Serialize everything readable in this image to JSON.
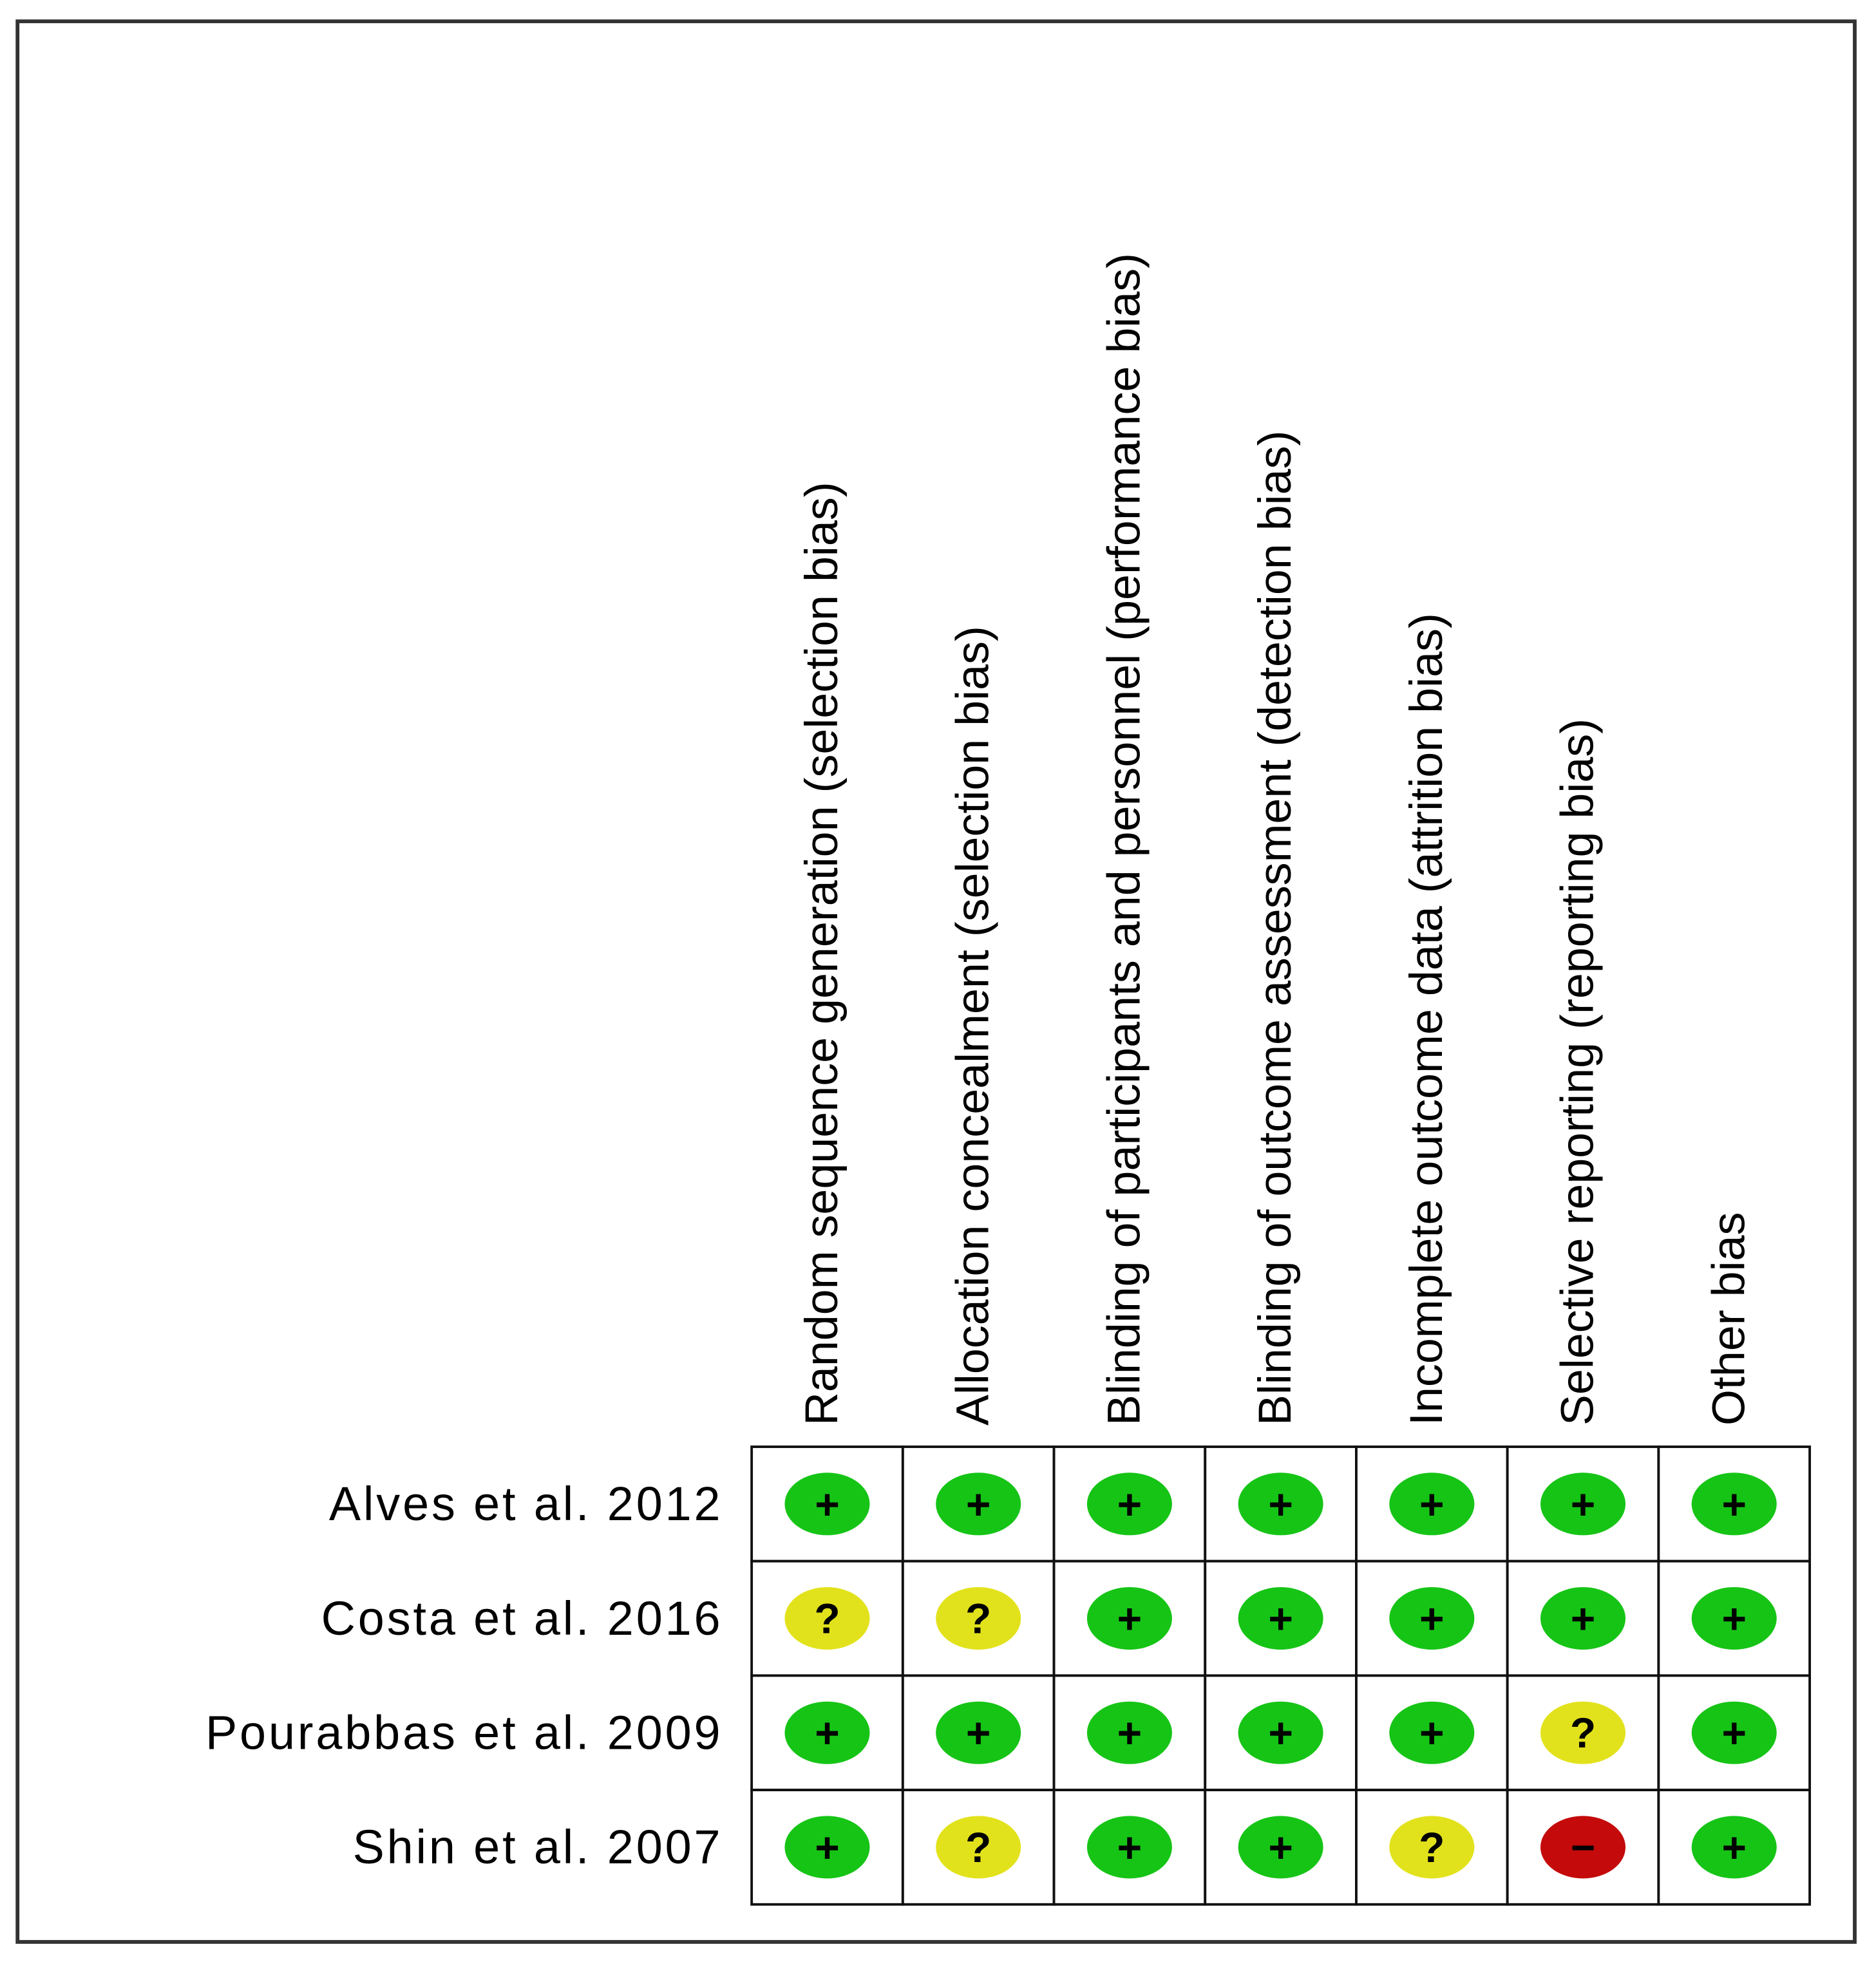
{
  "domains": [
    "Random sequence generation (selection bias)",
    "Allocation concealment (selection bias)",
    "Blinding of participants and personnel (performance bias)",
    "Blinding of outcome assessment (detection bias)",
    "Incomplete outcome data (attrition bias)",
    "Selective reporting (reporting bias)",
    "Other bias"
  ],
  "studies": [
    "Alves et al. 2012",
    "Costa et al. 2016",
    "Pourabbas et al. 2009",
    "Shin et al. 2007"
  ],
  "judgments": [
    [
      "+",
      "+",
      "+",
      "+",
      "+",
      "+",
      "+"
    ],
    [
      "?",
      "?",
      "+",
      "+",
      "+",
      "+",
      "+"
    ],
    [
      "+",
      "+",
      "+",
      "+",
      "+",
      "?",
      "+"
    ],
    [
      "+",
      "?",
      "+",
      "+",
      "?",
      "−",
      "+"
    ]
  ],
  "judgment_colors": {
    "+": "#16c416",
    "?": "#e2e21c",
    "−": "#c40a0a"
  }
}
